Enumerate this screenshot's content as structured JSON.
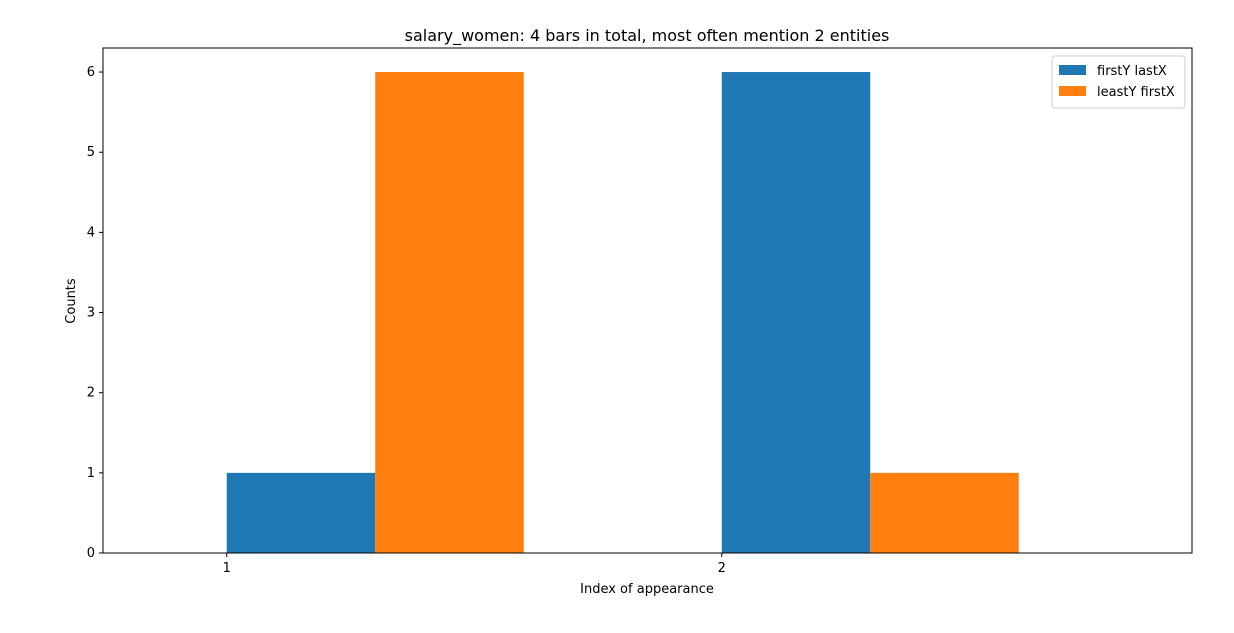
{
  "chart_data": {
    "type": "bar",
    "title": "salary_women: 4 bars in total, most often mention  2 entities",
    "xlabel": "Index of appearance",
    "ylabel": "Counts",
    "categories": [
      "1",
      "2"
    ],
    "series": [
      {
        "name": "firstY lastX",
        "values": [
          1,
          6
        ],
        "color": "#1f77b4"
      },
      {
        "name": "leastY firstX",
        "values": [
          6,
          1
        ],
        "color": "#ff7f0e"
      }
    ],
    "ylim": [
      0,
      6.3
    ],
    "yticks": [
      0,
      1,
      2,
      3,
      4,
      5,
      6
    ],
    "grid": false,
    "legend_position": "top-right"
  }
}
